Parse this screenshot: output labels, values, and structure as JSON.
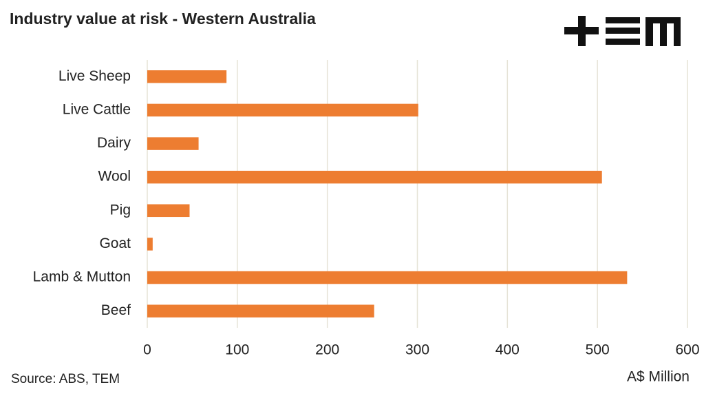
{
  "chart_data": {
    "type": "hbar",
    "title": "Industry value at risk - Western Australia",
    "categories": [
      "Live Sheep",
      "Live Cattle",
      "Dairy",
      "Wool",
      "Pig",
      "Goat",
      "Lamb & Mutton",
      "Beef"
    ],
    "values": [
      88,
      301,
      57,
      505,
      47,
      6,
      533,
      252
    ],
    "color": "#ed7d31",
    "xlim": [
      0,
      600
    ],
    "xticks": [
      0,
      100,
      200,
      300,
      400,
      500,
      600
    ],
    "x_label": "A$ Million",
    "source": "Source: ABS, TEM",
    "grid": true
  }
}
